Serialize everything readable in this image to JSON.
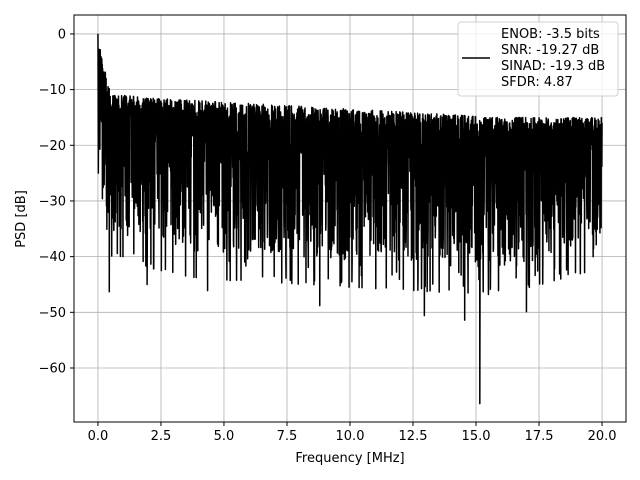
{
  "chart_data": {
    "type": "line",
    "title": "",
    "xlabel": "Frequency [MHz]",
    "ylabel": "PSD [dB]",
    "xlim": [
      -0.95,
      20.95
    ],
    "ylim": [
      -69.7,
      3.4
    ],
    "xticks": [
      0.0,
      2.5,
      5.0,
      7.5,
      10.0,
      12.5,
      15.0,
      17.5,
      20.0
    ],
    "xtick_labels": [
      "0.0",
      "2.5",
      "5.0",
      "7.5",
      "10.0",
      "12.5",
      "15.0",
      "17.5",
      "20.0"
    ],
    "yticks": [
      0,
      -10,
      -20,
      -30,
      -40,
      -50,
      -60
    ],
    "ytick_labels": [
      "0",
      "−10",
      "−20",
      "−30",
      "−40",
      "−50",
      "−60"
    ],
    "grid": true,
    "legend_position": "upper right",
    "legend": [
      "ENOB: -3.5 bits",
      "SNR: -19.27 dB",
      "SINAD: -19.3 dB",
      "SFDR: 4.87"
    ],
    "series": [
      {
        "color": "#000000",
        "x_range": [
          0.0,
          20.0
        ],
        "envelope_x": [
          0.0,
          0.5,
          1.0,
          2.0,
          4.0,
          8.0,
          12.0,
          16.0,
          20.0
        ],
        "envelope_max": [
          0.0,
          -11,
          -11,
          -11.5,
          -12,
          -13,
          -14,
          -15,
          -15
        ],
        "envelope_min": [
          -25,
          -40,
          -40,
          -42,
          -44,
          -45,
          -46,
          -47,
          -42
        ],
        "center_level": -24,
        "key_points": [
          {
            "x": 0.0,
            "y": 0.0
          },
          {
            "x": 0.45,
            "y": -46.3
          },
          {
            "x": 1.95,
            "y": -45.0
          },
          {
            "x": 4.35,
            "y": -46.1
          },
          {
            "x": 8.8,
            "y": -48.8
          },
          {
            "x": 12.95,
            "y": -50.6
          },
          {
            "x": 14.55,
            "y": -51.4
          },
          {
            "x": 15.15,
            "y": -66.4
          },
          {
            "x": 17.0,
            "y": -49.9
          }
        ]
      }
    ]
  },
  "colors": {
    "line": "#000000",
    "grid": "#b0b0b0",
    "legend_border": "#d0d0d0",
    "axes": "#000000"
  }
}
